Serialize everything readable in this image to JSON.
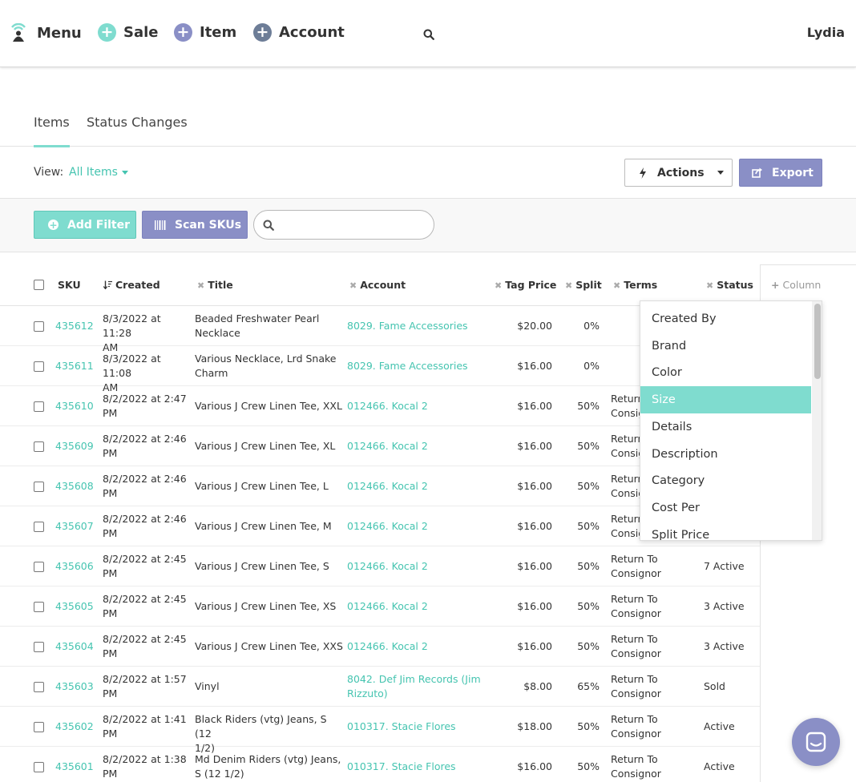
{
  "nav": {
    "menu_label": "Menu",
    "sale_label": "Sale",
    "item_label": "Item",
    "account_label": "Account",
    "user_name": "Lydia"
  },
  "tabs": [
    {
      "label": "Items",
      "active": true
    },
    {
      "label": "Status Changes",
      "active": false
    }
  ],
  "view": {
    "label": "View:",
    "value": "All Items"
  },
  "toolbar": {
    "actions_label": "Actions",
    "export_label": "Export",
    "add_filter_label": "Add Filter",
    "scan_skus_label": "Scan SKUs",
    "search_placeholder": ""
  },
  "table": {
    "columns": {
      "sku": "SKU",
      "created": "Created",
      "title": "Title",
      "account": "Account",
      "tag_price": "Tag Price",
      "split": "Split",
      "terms": "Terms",
      "status": "Status"
    },
    "add_column_label": "Column",
    "rows": [
      {
        "sku": "435612",
        "created": [
          "8/3/2022 at 11:28",
          "AM"
        ],
        "title": [
          "Beaded Freshwater Pearl",
          "Necklace"
        ],
        "account": [
          "8029. Fame Accessories"
        ],
        "price": "$20.00",
        "split": "0%",
        "terms": [],
        "status": ""
      },
      {
        "sku": "435611",
        "created": [
          "8/3/2022 at 11:08",
          "AM"
        ],
        "title": [
          "Various Necklace, Lrd Snake",
          "Charm"
        ],
        "account": [
          "8029. Fame Accessories"
        ],
        "price": "$16.00",
        "split": "0%",
        "terms": [],
        "status": ""
      },
      {
        "sku": "435610",
        "created": [
          "8/2/2022 at 2:47",
          "PM"
        ],
        "title": [
          "Various J Crew Linen Tee, XXL"
        ],
        "account": [
          "012466. Kocal 2"
        ],
        "price": "$16.00",
        "split": "50%",
        "terms": [
          "Return To",
          "Consignor"
        ],
        "status": ""
      },
      {
        "sku": "435609",
        "created": [
          "8/2/2022 at 2:46",
          "PM"
        ],
        "title": [
          "Various J Crew Linen Tee, XL"
        ],
        "account": [
          "012466. Kocal 2"
        ],
        "price": "$16.00",
        "split": "50%",
        "terms": [
          "Return To",
          "Consignor"
        ],
        "status": ""
      },
      {
        "sku": "435608",
        "created": [
          "8/2/2022 at 2:46",
          "PM"
        ],
        "title": [
          "Various J Crew Linen Tee, L"
        ],
        "account": [
          "012466. Kocal 2"
        ],
        "price": "$16.00",
        "split": "50%",
        "terms": [
          "Return To",
          "Consignor"
        ],
        "status": ""
      },
      {
        "sku": "435607",
        "created": [
          "8/2/2022 at 2:46",
          "PM"
        ],
        "title": [
          "Various J Crew Linen Tee, M"
        ],
        "account": [
          "012466. Kocal 2"
        ],
        "price": "$16.00",
        "split": "50%",
        "terms": [
          "Return To",
          "Consignor"
        ],
        "status": ""
      },
      {
        "sku": "435606",
        "created": [
          "8/2/2022 at 2:45",
          "PM"
        ],
        "title": [
          "Various J Crew Linen Tee, S"
        ],
        "account": [
          "012466. Kocal 2"
        ],
        "price": "$16.00",
        "split": "50%",
        "terms": [
          "Return To",
          "Consignor"
        ],
        "status": "7 Active"
      },
      {
        "sku": "435605",
        "created": [
          "8/2/2022 at 2:45",
          "PM"
        ],
        "title": [
          "Various J Crew Linen Tee, XS"
        ],
        "account": [
          "012466. Kocal 2"
        ],
        "price": "$16.00",
        "split": "50%",
        "terms": [
          "Return To",
          "Consignor"
        ],
        "status": "3 Active"
      },
      {
        "sku": "435604",
        "created": [
          "8/2/2022 at 2:45",
          "PM"
        ],
        "title": [
          "Various J Crew Linen Tee, XXS"
        ],
        "account": [
          "012466. Kocal 2"
        ],
        "price": "$16.00",
        "split": "50%",
        "terms": [
          "Return To",
          "Consignor"
        ],
        "status": "3 Active"
      },
      {
        "sku": "435603",
        "created": [
          "8/2/2022 at 1:57",
          "PM"
        ],
        "title": [
          "Vinyl"
        ],
        "account": [
          "8042. Def Jim Records (Jim",
          "Rizzuto)"
        ],
        "price": "$8.00",
        "split": "65%",
        "terms": [
          "Return To",
          "Consignor"
        ],
        "status": "Sold"
      },
      {
        "sku": "435602",
        "created": [
          "8/2/2022 at 1:41",
          "PM"
        ],
        "title": [
          "Black Riders (vtg) Jeans, S (12",
          "1/2)"
        ],
        "account": [
          "010317. Stacie Flores"
        ],
        "price": "$18.00",
        "split": "50%",
        "terms": [
          "Return To",
          "Consignor"
        ],
        "status": "Active"
      },
      {
        "sku": "435601",
        "created": [
          "8/2/2022 at 1:38",
          "PM"
        ],
        "title": [
          "Md Denim Riders (vtg) Jeans,",
          "S (12 1/2)"
        ],
        "account": [
          "010317. Stacie Flores"
        ],
        "price": "$16.00",
        "split": "50%",
        "terms": [
          "Return To",
          "Consignor"
        ],
        "status": "Active"
      }
    ]
  },
  "column_dropdown": {
    "options": [
      "Created By",
      "Brand",
      "Color",
      "Size",
      "Details",
      "Description",
      "Category",
      "Cost Per",
      "Split Price"
    ],
    "highlighted": "Size"
  },
  "colors": {
    "accent_teal": "#7fdccf",
    "link_teal": "#45c4b0",
    "accent_purple": "#8a8fc6"
  }
}
